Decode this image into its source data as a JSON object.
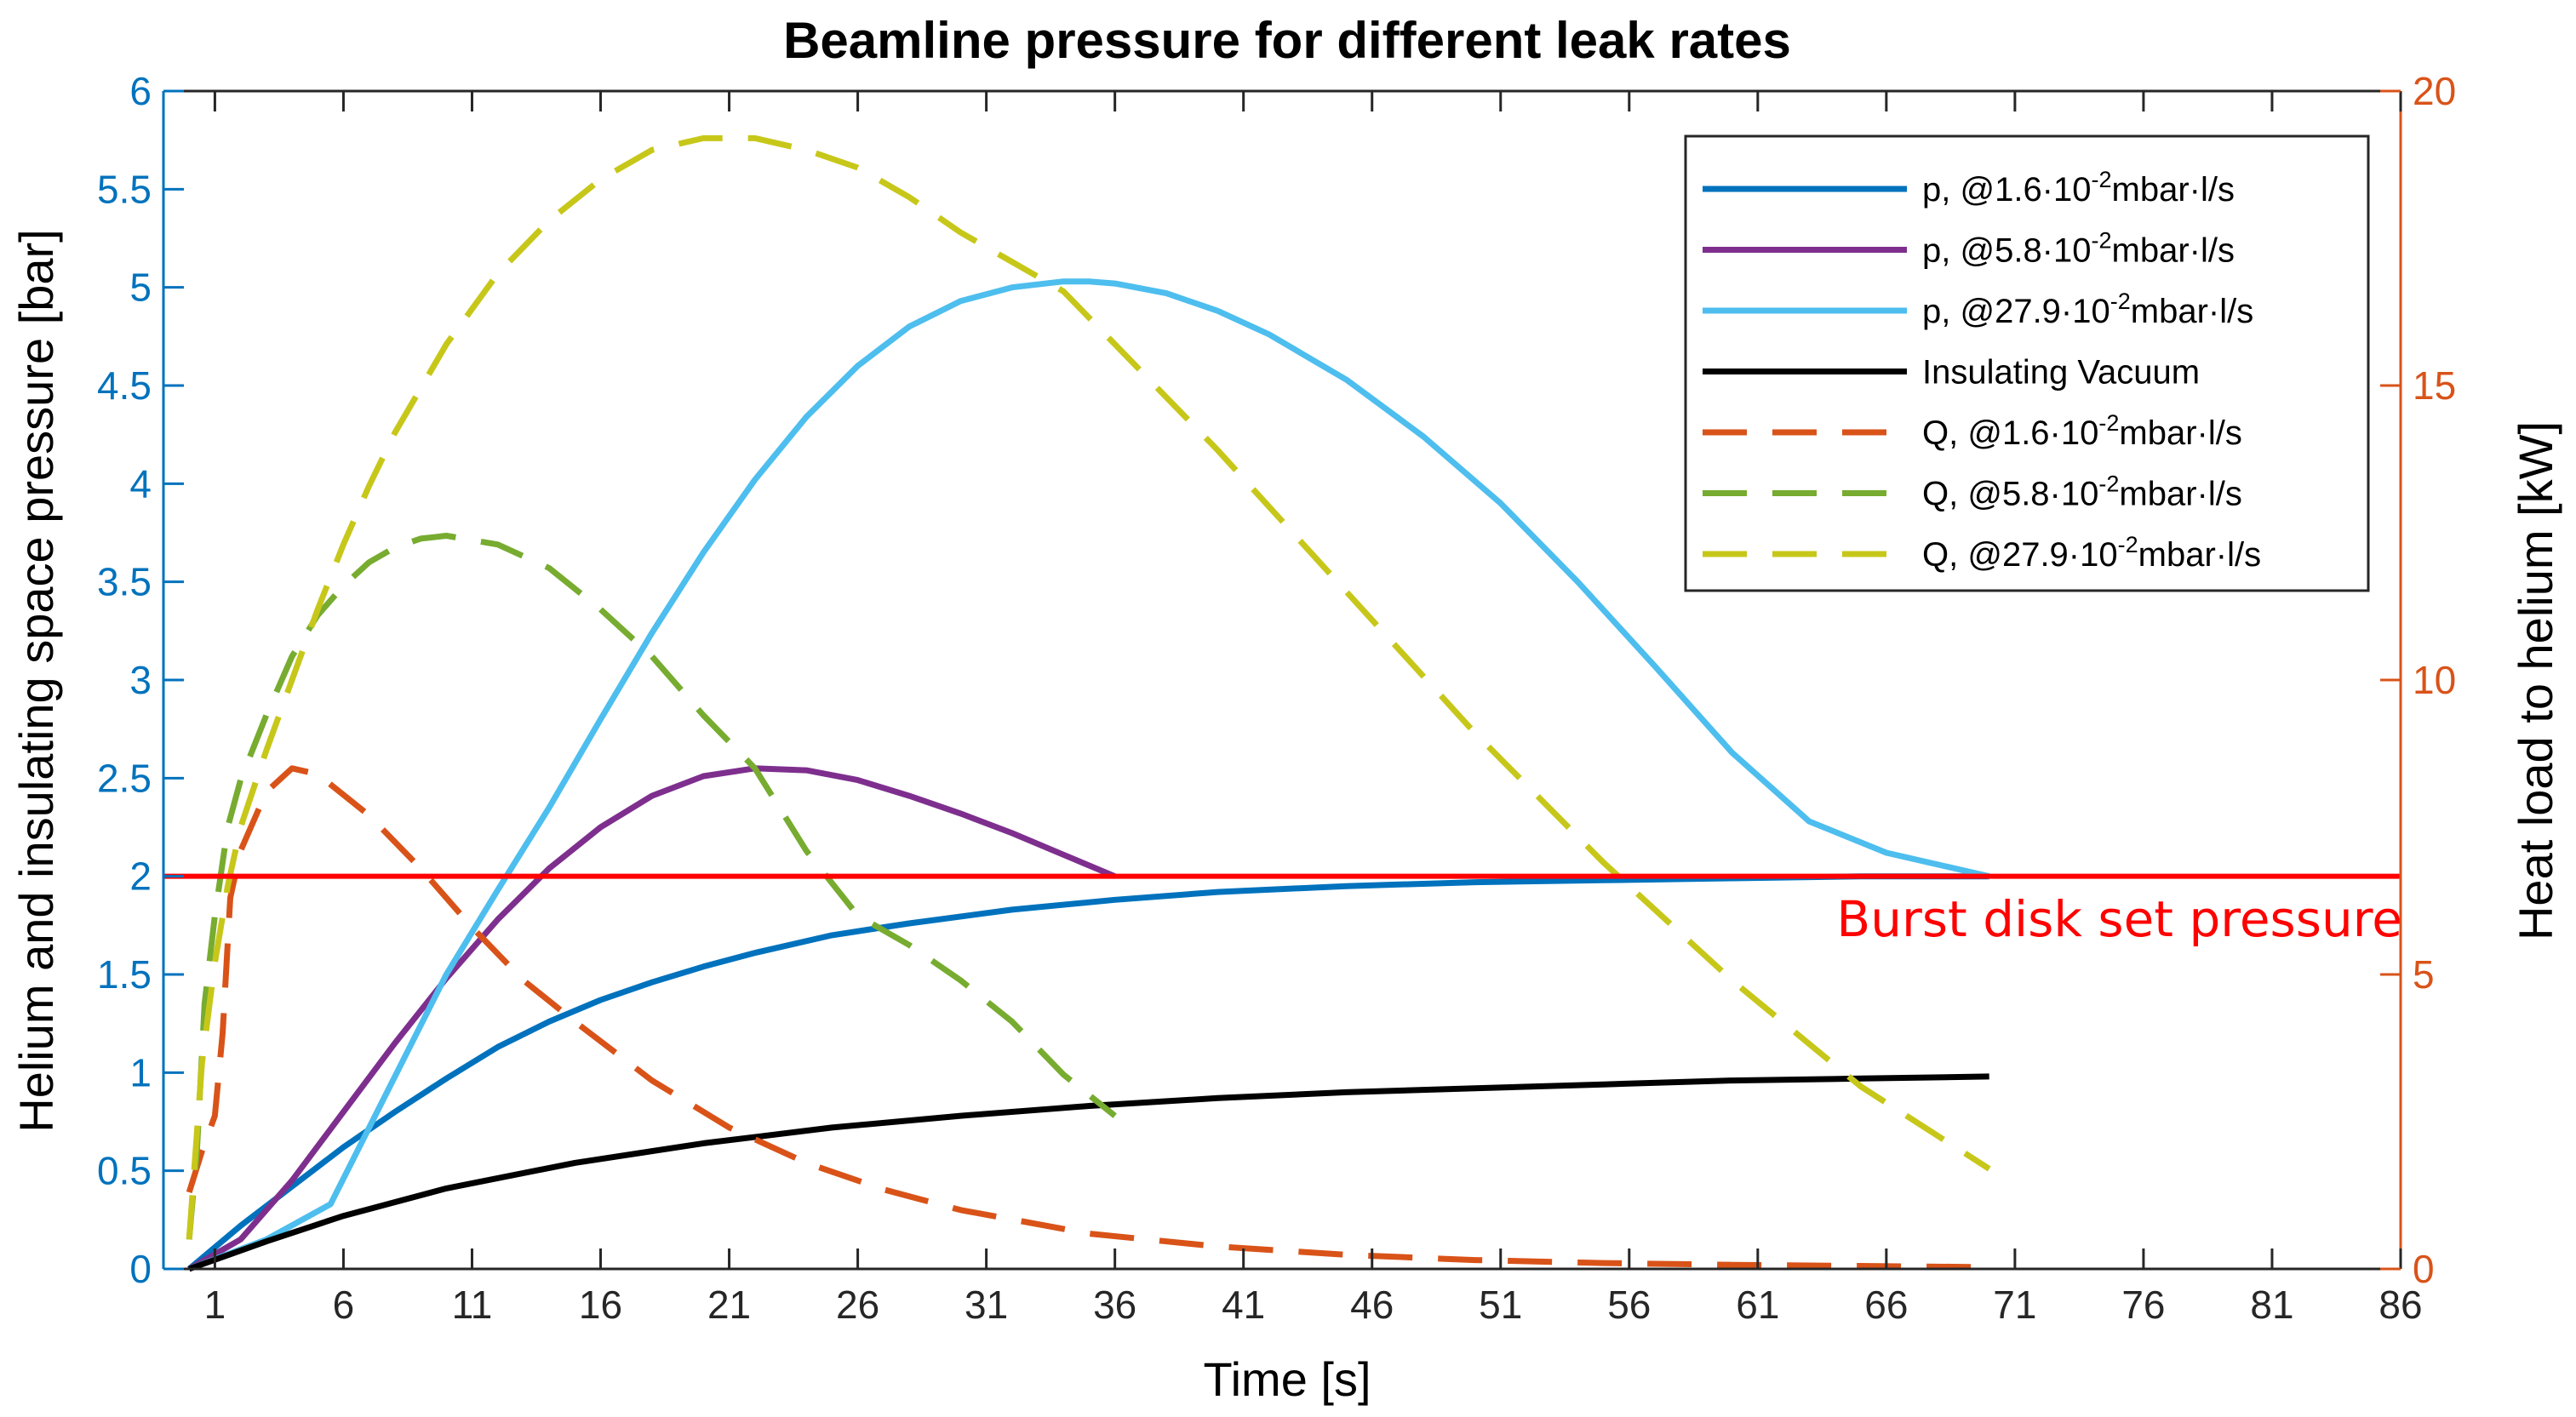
{
  "chart_data": {
    "type": "line",
    "title": "Beamline pressure for different leak rates",
    "xlabel": "Time [s]",
    "ylabel_left": "Helium and insulating space pressure [bar]",
    "ylabel_right": "Heat load to helium [kW]",
    "xlim": [
      -1,
      86
    ],
    "ylim_left": [
      0,
      6
    ],
    "ylim_right": [
      0,
      20
    ],
    "x_ticks": [
      1,
      6,
      11,
      16,
      21,
      26,
      31,
      36,
      41,
      46,
      51,
      56,
      61,
      66,
      71,
      76,
      81,
      86
    ],
    "y_left_ticks": [
      "0",
      "0.5",
      "1",
      "1.5",
      "2",
      "2.5",
      "3",
      "3.5",
      "4",
      "4.5",
      "5",
      "5.5",
      "6"
    ],
    "y_right_ticks": [
      "0",
      "5",
      "10",
      "15",
      "20"
    ],
    "grid": false,
    "legend_position": "top-right",
    "colors": {
      "left_axis": "#0072BD",
      "right_axis": "#D95319",
      "burst_line": "#FF0000"
    },
    "series": [
      {
        "name": "p, @1.6·10-2mbar·l/s",
        "legend_main": "p, @1.6·10",
        "legend_sup": "-2",
        "legend_tail": "mbar·l/s",
        "axis": "left",
        "style": "solid",
        "color": "#0072BD",
        "x": [
          0,
          2,
          4,
          6,
          8,
          10,
          12,
          14,
          16,
          18,
          20,
          22,
          25,
          28,
          32,
          36,
          40,
          45,
          50,
          55,
          60,
          65,
          70
        ],
        "y": [
          0,
          0.22,
          0.42,
          0.62,
          0.8,
          0.97,
          1.13,
          1.26,
          1.37,
          1.46,
          1.54,
          1.61,
          1.7,
          1.76,
          1.83,
          1.88,
          1.92,
          1.95,
          1.97,
          1.98,
          1.99,
          2.0,
          2.0
        ]
      },
      {
        "name": "p, @5.8·10-2mbar·l/s",
        "legend_main": "p, @5.8·10",
        "legend_sup": "-2",
        "legend_tail": "mbar·l/s",
        "axis": "left",
        "style": "solid",
        "color": "#7E2F8E",
        "x": [
          0,
          2,
          4,
          6,
          8,
          10,
          12,
          14,
          16,
          18,
          20,
          22,
          24,
          26,
          28,
          30,
          32,
          34,
          36
        ],
        "y": [
          0,
          0.15,
          0.45,
          0.8,
          1.15,
          1.48,
          1.78,
          2.04,
          2.25,
          2.41,
          2.51,
          2.55,
          2.54,
          2.49,
          2.41,
          2.32,
          2.22,
          2.11,
          2.0
        ]
      },
      {
        "name": "p, @27.9·10-2mbar·l/s",
        "legend_main": "p, @27.9·10",
        "legend_sup": "-2",
        "legend_tail": "mbar·l/s",
        "axis": "left",
        "style": "solid",
        "color": "#4DBEEE",
        "x": [
          0,
          3,
          5.5,
          8,
          10,
          12,
          14,
          16,
          18,
          20,
          22,
          24,
          26,
          28,
          30,
          32,
          34,
          35,
          36,
          38,
          40,
          42,
          45,
          48,
          51,
          54,
          57,
          60,
          63,
          66,
          70
        ],
        "y": [
          0,
          0.15,
          0.33,
          0.98,
          1.5,
          1.93,
          2.35,
          2.8,
          3.24,
          3.65,
          4.02,
          4.34,
          4.6,
          4.8,
          4.93,
          5.0,
          5.03,
          5.03,
          5.02,
          4.97,
          4.88,
          4.76,
          4.53,
          4.24,
          3.9,
          3.5,
          3.07,
          2.63,
          2.28,
          2.12,
          2.0
        ]
      },
      {
        "name": "Insulating Vacuum",
        "legend_main": "Insulating Vacuum",
        "legend_sup": "",
        "legend_tail": "",
        "axis": "left",
        "style": "solid",
        "color": "#000000",
        "x": [
          0,
          3,
          6,
          10,
          15,
          20,
          25,
          30,
          35,
          40,
          45,
          50,
          55,
          60,
          65,
          70
        ],
        "y": [
          0,
          0.14,
          0.27,
          0.41,
          0.54,
          0.64,
          0.72,
          0.78,
          0.83,
          0.87,
          0.9,
          0.92,
          0.94,
          0.96,
          0.97,
          0.98
        ]
      },
      {
        "name": "Q, @1.6·10-2mbar·l/s",
        "legend_main": "Q, @1.6·10",
        "legend_sup": "-2",
        "legend_tail": "mbar·l/s",
        "axis": "right",
        "style": "dashed",
        "color": "#D95319",
        "x": [
          0,
          0.5,
          1,
          1.3,
          1.6,
          2,
          3,
          4,
          5,
          7,
          9,
          11,
          13,
          15,
          18,
          21,
          24,
          27,
          30,
          35,
          40,
          45,
          50,
          55,
          60,
          65,
          70
        ],
        "y": [
          1.3,
          2.0,
          2.6,
          4.0,
          6.3,
          7.1,
          8.1,
          8.5,
          8.4,
          7.7,
          6.8,
          5.8,
          4.9,
          4.2,
          3.2,
          2.4,
          1.8,
          1.35,
          1.0,
          0.6,
          0.38,
          0.24,
          0.15,
          0.1,
          0.07,
          0.05,
          0.03
        ]
      },
      {
        "name": "Q, @5.8·10-2mbar·l/s",
        "legend_main": "Q, @5.8·10",
        "legend_sup": "-2",
        "legend_tail": "mbar·l/s",
        "axis": "right",
        "style": "dashed",
        "color": "#77AC30",
        "x": [
          0,
          0.3,
          0.6,
          1,
          1.5,
          2,
          3,
          4,
          5,
          6,
          7,
          8,
          9,
          10,
          12,
          14,
          16,
          18,
          20,
          22,
          24,
          26,
          28,
          30,
          32,
          34,
          36
        ],
        "y": [
          0.5,
          2.0,
          4.5,
          6.0,
          7.5,
          8.3,
          9.4,
          10.4,
          11.1,
          11.6,
          12.0,
          12.25,
          12.4,
          12.45,
          12.3,
          11.9,
          11.2,
          10.4,
          9.4,
          8.5,
          7.1,
          6.0,
          5.5,
          4.9,
          4.2,
          3.3,
          2.6
        ]
      },
      {
        "name": "Q, @27.9·10-2mbar·l/s",
        "legend_main": "Q, @27.9·10",
        "legend_sup": "-2",
        "legend_tail": "mbar·l/s",
        "axis": "right",
        "style": "dashed",
        "color": "#C7C71A",
        "x": [
          0,
          0.5,
          1,
          1.5,
          2,
          3,
          4,
          5,
          6,
          7,
          8,
          10,
          12,
          14,
          16,
          18,
          20,
          22,
          24,
          26,
          28,
          30,
          32,
          34,
          36,
          40,
          45,
          50,
          55,
          60,
          65,
          70
        ],
        "y": [
          0.5,
          3.5,
          5.2,
          6.5,
          7.5,
          8.8,
          10.0,
          11.2,
          12.3,
          13.3,
          14.2,
          15.7,
          16.9,
          17.8,
          18.5,
          19.0,
          19.2,
          19.2,
          19.0,
          18.7,
          18.2,
          17.6,
          17.1,
          16.6,
          15.7,
          13.9,
          11.5,
          9.1,
          6.9,
          4.9,
          3.1,
          1.7
        ]
      }
    ],
    "reference_line": {
      "name": "Burst disk set pressure",
      "axis": "left",
      "y": 2.0,
      "x_start": -1,
      "x_end": 86,
      "color": "#FF0000"
    },
    "annotation": "Burst disk set pressure"
  }
}
